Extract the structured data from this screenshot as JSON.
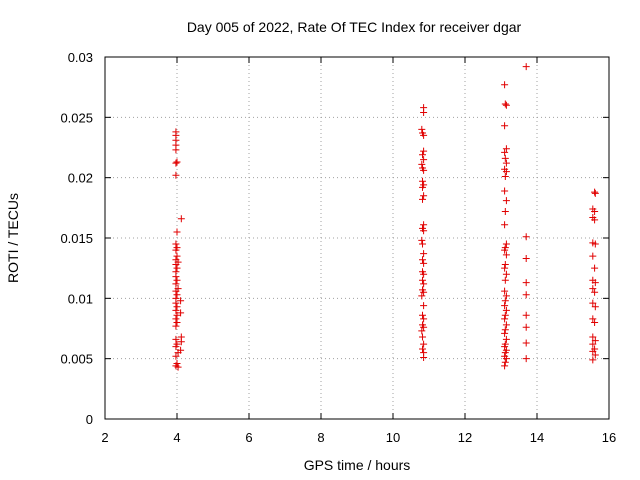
{
  "chart_data": {
    "type": "scatter",
    "title": "Day 005 of 2022, Rate Of TEC Index for receiver dgar",
    "xlabel": "GPS time / hours",
    "ylabel": "ROTI / TECUs",
    "xlim": [
      2,
      16
    ],
    "ylim": [
      0,
      0.03
    ],
    "x_ticks": [
      2,
      4,
      6,
      8,
      10,
      12,
      14,
      16
    ],
    "x_tick_labels": [
      "2",
      "4",
      "6",
      "8",
      "10",
      "12",
      "14",
      "16"
    ],
    "y_ticks": [
      0,
      0.005,
      0.01,
      0.015,
      0.02,
      0.025,
      0.03
    ],
    "y_tick_labels": [
      "0",
      "0.005",
      "0.01",
      "0.015",
      "0.02",
      "0.025",
      "0.03"
    ],
    "grid": true,
    "marker": "+",
    "marker_color": "#e00000",
    "points": [
      [
        3.97,
        0.0238
      ],
      [
        3.97,
        0.0235
      ],
      [
        3.97,
        0.0231
      ],
      [
        3.97,
        0.0227
      ],
      [
        3.97,
        0.0223
      ],
      [
        4.0,
        0.0213
      ],
      [
        3.97,
        0.0212
      ],
      [
        3.97,
        0.0202
      ],
      [
        4.12,
        0.0166
      ],
      [
        4.0,
        0.0155
      ],
      [
        3.97,
        0.0145
      ],
      [
        4.0,
        0.0142
      ],
      [
        3.97,
        0.014
      ],
      [
        4.0,
        0.0135
      ],
      [
        3.97,
        0.0132
      ],
      [
        4.03,
        0.013
      ],
      [
        3.97,
        0.0128
      ],
      [
        4.0,
        0.0125
      ],
      [
        3.97,
        0.0122
      ],
      [
        3.97,
        0.0118
      ],
      [
        4.0,
        0.0115
      ],
      [
        3.97,
        0.0112
      ],
      [
        4.03,
        0.0108
      ],
      [
        3.97,
        0.0106
      ],
      [
        4.0,
        0.0103
      ],
      [
        3.97,
        0.01
      ],
      [
        4.1,
        0.0098
      ],
      [
        3.97,
        0.0096
      ],
      [
        4.0,
        0.0093
      ],
      [
        3.97,
        0.009
      ],
      [
        4.1,
        0.0088
      ],
      [
        4.0,
        0.0086
      ],
      [
        3.97,
        0.0083
      ],
      [
        4.0,
        0.008
      ],
      [
        3.97,
        0.0077
      ],
      [
        4.12,
        0.0068
      ],
      [
        3.97,
        0.0066
      ],
      [
        4.12,
        0.0064
      ],
      [
        4.0,
        0.0062
      ],
      [
        3.97,
        0.006
      ],
      [
        4.1,
        0.0057
      ],
      [
        4.03,
        0.0055
      ],
      [
        3.97,
        0.0052
      ],
      [
        4.0,
        0.0046
      ],
      [
        3.97,
        0.0044
      ],
      [
        4.03,
        0.0043
      ],
      [
        10.85,
        0.0258
      ],
      [
        10.85,
        0.0254
      ],
      [
        10.8,
        0.024
      ],
      [
        10.82,
        0.0237
      ],
      [
        10.85,
        0.0235
      ],
      [
        10.85,
        0.0222
      ],
      [
        10.82,
        0.0219
      ],
      [
        10.85,
        0.0215
      ],
      [
        10.8,
        0.0211
      ],
      [
        10.82,
        0.0208
      ],
      [
        10.85,
        0.0206
      ],
      [
        10.82,
        0.0197
      ],
      [
        10.85,
        0.0194
      ],
      [
        10.82,
        0.0192
      ],
      [
        10.85,
        0.0185
      ],
      [
        10.82,
        0.0182
      ],
      [
        10.85,
        0.0161
      ],
      [
        10.82,
        0.0158
      ],
      [
        10.85,
        0.0156
      ],
      [
        10.8,
        0.0148
      ],
      [
        10.82,
        0.0145
      ],
      [
        10.85,
        0.0137
      ],
      [
        10.82,
        0.0132
      ],
      [
        10.85,
        0.0129
      ],
      [
        10.82,
        0.0122
      ],
      [
        10.85,
        0.012
      ],
      [
        10.82,
        0.0115
      ],
      [
        10.85,
        0.0112
      ],
      [
        10.82,
        0.0107
      ],
      [
        10.85,
        0.0105
      ],
      [
        10.8,
        0.0102
      ],
      [
        10.85,
        0.0094
      ],
      [
        10.82,
        0.0086
      ],
      [
        10.85,
        0.0083
      ],
      [
        10.82,
        0.0078
      ],
      [
        10.85,
        0.0076
      ],
      [
        10.8,
        0.0073
      ],
      [
        10.82,
        0.0068
      ],
      [
        10.85,
        0.0062
      ],
      [
        10.82,
        0.0058
      ],
      [
        10.85,
        0.0055
      ],
      [
        10.85,
        0.0051
      ],
      [
        13.1,
        0.0277
      ],
      [
        13.12,
        0.0261
      ],
      [
        13.15,
        0.026
      ],
      [
        13.1,
        0.0243
      ],
      [
        13.15,
        0.0224
      ],
      [
        13.1,
        0.0221
      ],
      [
        13.12,
        0.0216
      ],
      [
        13.15,
        0.0212
      ],
      [
        13.1,
        0.0207
      ],
      [
        13.15,
        0.0205
      ],
      [
        13.12,
        0.0201
      ],
      [
        13.1,
        0.0189
      ],
      [
        13.15,
        0.0181
      ],
      [
        13.12,
        0.0172
      ],
      [
        13.1,
        0.0161
      ],
      [
        13.15,
        0.0145
      ],
      [
        13.12,
        0.0142
      ],
      [
        13.1,
        0.014
      ],
      [
        13.15,
        0.0136
      ],
      [
        13.12,
        0.0128
      ],
      [
        13.1,
        0.0125
      ],
      [
        13.15,
        0.012
      ],
      [
        13.12,
        0.0115
      ],
      [
        13.1,
        0.0106
      ],
      [
        13.15,
        0.0102
      ],
      [
        13.12,
        0.0098
      ],
      [
        13.1,
        0.0094
      ],
      [
        13.15,
        0.009
      ],
      [
        13.12,
        0.0086
      ],
      [
        13.1,
        0.0083
      ],
      [
        13.15,
        0.0078
      ],
      [
        13.12,
        0.0074
      ],
      [
        13.1,
        0.0071
      ],
      [
        13.15,
        0.0066
      ],
      [
        13.12,
        0.0062
      ],
      [
        13.1,
        0.006
      ],
      [
        13.15,
        0.0057
      ],
      [
        13.12,
        0.0055
      ],
      [
        13.1,
        0.0052
      ],
      [
        13.15,
        0.005
      ],
      [
        13.12,
        0.0047
      ],
      [
        13.1,
        0.0044
      ],
      [
        13.7,
        0.0292
      ],
      [
        13.7,
        0.0151
      ],
      [
        13.7,
        0.0133
      ],
      [
        13.7,
        0.0113
      ],
      [
        13.7,
        0.0103
      ],
      [
        13.7,
        0.0086
      ],
      [
        13.7,
        0.0076
      ],
      [
        13.7,
        0.0063
      ],
      [
        13.7,
        0.005
      ],
      [
        15.6,
        0.0188
      ],
      [
        15.62,
        0.0187
      ],
      [
        15.55,
        0.0174
      ],
      [
        15.6,
        0.0172
      ],
      [
        15.55,
        0.0167
      ],
      [
        15.6,
        0.0165
      ],
      [
        15.55,
        0.0146
      ],
      [
        15.62,
        0.0145
      ],
      [
        15.55,
        0.0135
      ],
      [
        15.6,
        0.0125
      ],
      [
        15.55,
        0.0115
      ],
      [
        15.62,
        0.0113
      ],
      [
        15.55,
        0.0108
      ],
      [
        15.6,
        0.0105
      ],
      [
        15.55,
        0.0096
      ],
      [
        15.62,
        0.0093
      ],
      [
        15.55,
        0.0083
      ],
      [
        15.6,
        0.008
      ],
      [
        15.55,
        0.0068
      ],
      [
        15.62,
        0.0065
      ],
      [
        15.55,
        0.0062
      ],
      [
        15.6,
        0.0058
      ],
      [
        15.55,
        0.0056
      ],
      [
        15.62,
        0.0053
      ],
      [
        15.55,
        0.0049
      ]
    ]
  }
}
